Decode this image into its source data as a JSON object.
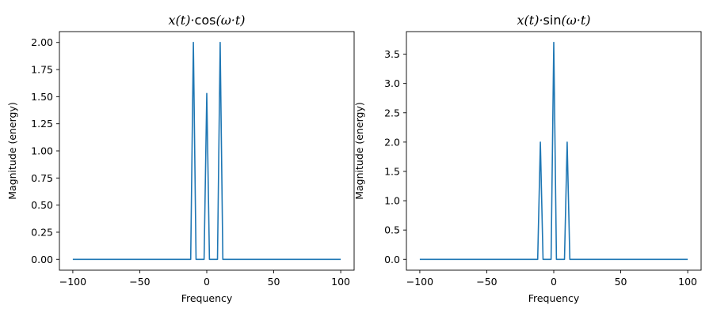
{
  "chart_data": [
    {
      "type": "line",
      "title": "x(t)·cos(ω·t)",
      "xlabel": "Frequency",
      "ylabel": "Magnitude (energy)",
      "xlim": [
        -110,
        110
      ],
      "ylim": [
        -0.1,
        2.1
      ],
      "xticks": [
        -100,
        -50,
        0,
        50,
        100
      ],
      "xtick_labels": [
        "−100",
        "−50",
        "0",
        "50",
        "100"
      ],
      "yticks": [
        0.0,
        0.25,
        0.5,
        0.75,
        1.0,
        1.25,
        1.5,
        1.75,
        2.0
      ],
      "ytick_labels": [
        "0.00",
        "0.25",
        "0.50",
        "0.75",
        "1.00",
        "1.25",
        "1.50",
        "1.75",
        "2.00"
      ],
      "grid": false,
      "color": "#1f77b4",
      "x": [
        -100,
        -12,
        -10,
        -8,
        -2,
        0,
        2,
        8,
        10,
        12,
        100
      ],
      "y": [
        0,
        0,
        2.0,
        0,
        0,
        1.53,
        0,
        0,
        2.0,
        0,
        0
      ]
    },
    {
      "type": "line",
      "title": "x(t)·sin(ω·t)",
      "xlabel": "Frequency",
      "ylabel": "Magnitude (energy)",
      "xlim": [
        -110,
        110
      ],
      "ylim": [
        -0.185,
        3.885
      ],
      "xticks": [
        -100,
        -50,
        0,
        50,
        100
      ],
      "xtick_labels": [
        "−100",
        "−50",
        "0",
        "50",
        "100"
      ],
      "yticks": [
        0.0,
        0.5,
        1.0,
        1.5,
        2.0,
        2.5,
        3.0,
        3.5
      ],
      "ytick_labels": [
        "0.0",
        "0.5",
        "1.0",
        "1.5",
        "2.0",
        "2.5",
        "3.0",
        "3.5"
      ],
      "grid": false,
      "color": "#1f77b4",
      "x": [
        -100,
        -12,
        -10,
        -8,
        -2,
        0,
        2,
        8,
        10,
        12,
        100
      ],
      "y": [
        0,
        0,
        2.0,
        0,
        0,
        3.7,
        0,
        0,
        2.0,
        0,
        0
      ]
    }
  ]
}
